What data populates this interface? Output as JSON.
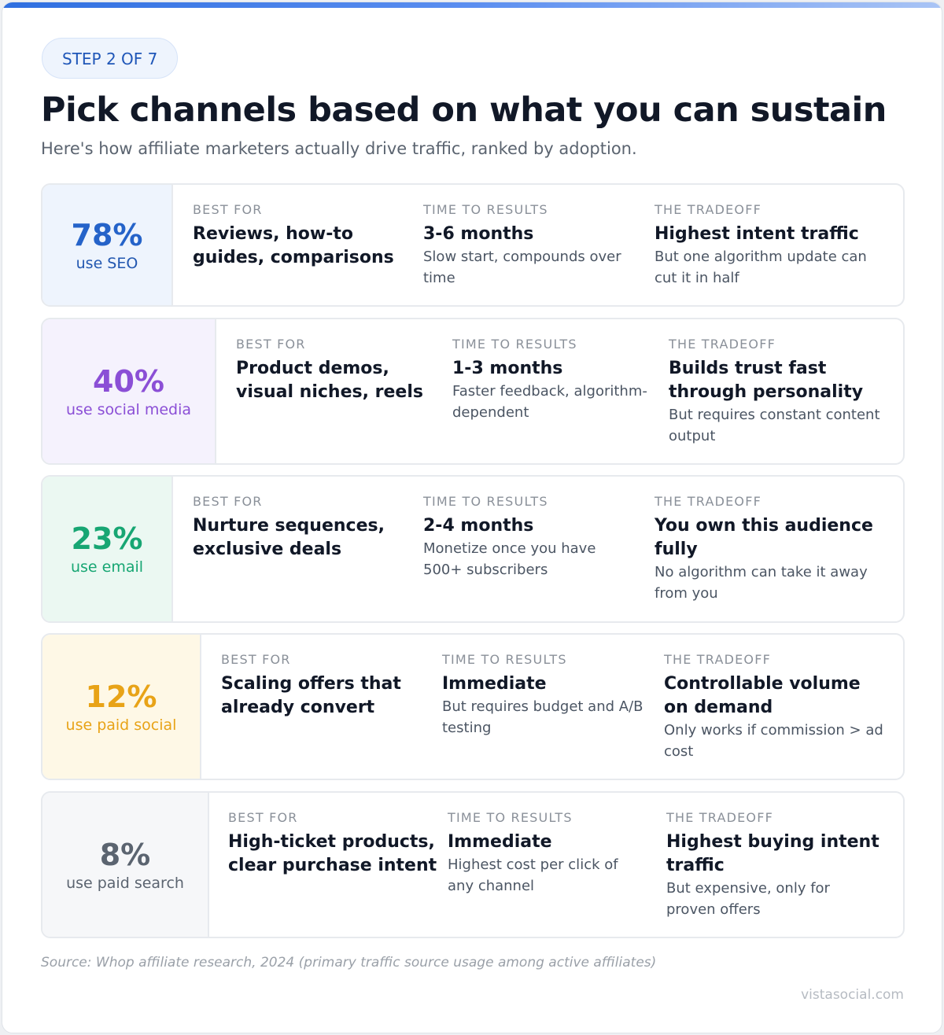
{
  "header": {
    "step": "STEP 2 OF 7",
    "title": "Pick channels based on what you can sustain",
    "subtitle": "Here's how affiliate marketers actually drive traffic, ranked by adoption."
  },
  "channels": [
    {
      "stat": "78%",
      "label": "use SEO",
      "best_for_heading": "BEST FOR",
      "best_for": "Reviews, how-to guides, comparisons",
      "time_heading": "TIME TO RESULTS",
      "time": "3-6 months",
      "time_note": "Slow start, compounds over time",
      "tradeoff_heading": "THE TRADEOFF",
      "tradeoff": "Highest intent traffic",
      "tradeoff_note": "But one algorithm update can cut it in half"
    },
    {
      "stat": "40%",
      "label": "use social media",
      "best_for_heading": "BEST FOR",
      "best_for": "Product demos, visual niches, reels",
      "time_heading": "TIME TO RESULTS",
      "time": "1-3 months",
      "time_note": "Faster feedback, algorithm-dependent",
      "tradeoff_heading": "THE TRADEOFF",
      "tradeoff": "Builds trust fast through personality",
      "tradeoff_note": "But requires constant content output"
    },
    {
      "stat": "23%",
      "label": "use email",
      "best_for_heading": "BEST FOR",
      "best_for": "Nurture sequences, exclusive deals",
      "time_heading": "TIME TO RESULTS",
      "time": "2-4 months",
      "time_note": "Monetize once you have 500+ subscribers",
      "tradeoff_heading": "THE TRADEOFF",
      "tradeoff": "You own this audience fully",
      "tradeoff_note": "No algorithm can take it away from you"
    },
    {
      "stat": "12%",
      "label": "use paid social",
      "best_for_heading": "BEST FOR",
      "best_for": "Scaling offers that already convert",
      "time_heading": "TIME TO RESULTS",
      "time": "Immediate",
      "time_note": "But requires budget and A/B testing",
      "tradeoff_heading": "THE TRADEOFF",
      "tradeoff": "Controllable volume on demand",
      "tradeoff_note": "Only works if commission > ad cost"
    },
    {
      "stat": "8%",
      "label": "use paid search",
      "best_for_heading": "BEST FOR",
      "best_for": "High-ticket products, clear purchase intent",
      "time_heading": "TIME TO RESULTS",
      "time": "Immediate",
      "time_note": "Highest cost per click of any channel",
      "tradeoff_heading": "THE TRADEOFF",
      "tradeoff": "Highest buying intent traffic",
      "tradeoff_note": "But expensive, only for proven offers"
    }
  ],
  "footer": {
    "source": "Source: Whop affiliate research, 2024 (primary traffic source usage among active affiliates)",
    "brand": "vistasocial.com"
  }
}
